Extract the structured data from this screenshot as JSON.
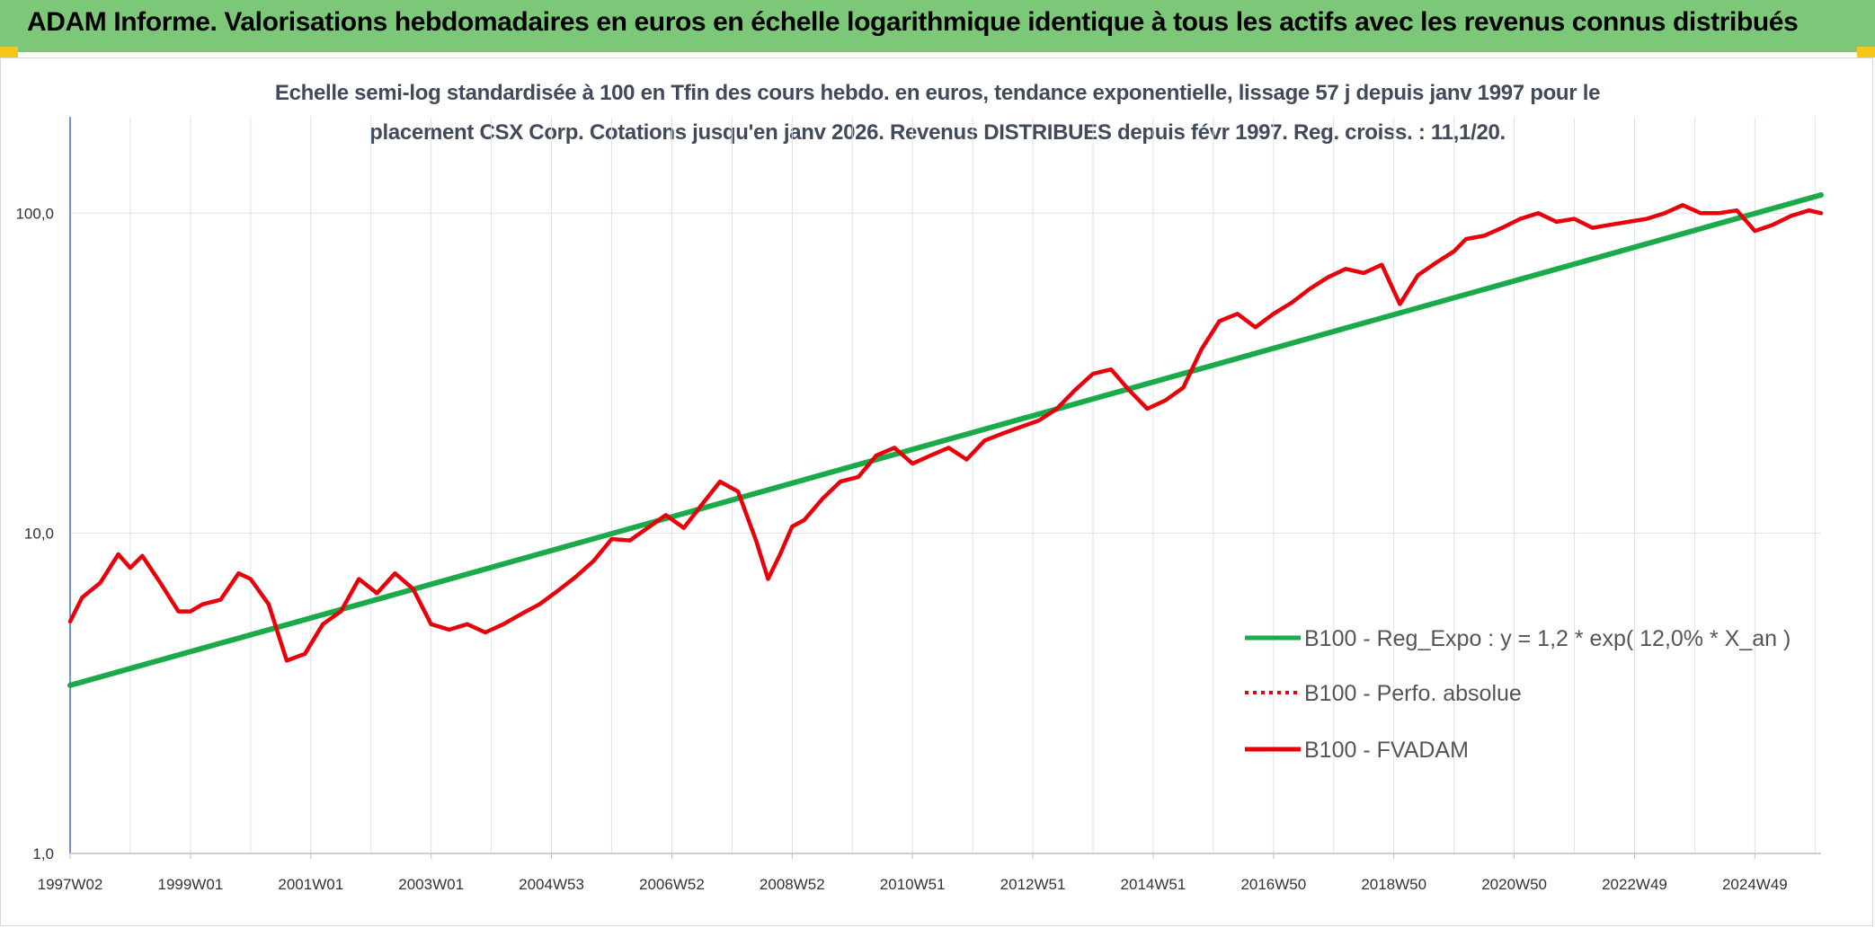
{
  "chart_data": {
    "type": "line",
    "title": "ADAM Informe. Valorisations hebdomadaires en euros en échelle logarithmique identique à tous les actifs avec les revenus connus distribués",
    "subtitle_lines": [
      "Echelle semi-log standardisée à 100 en Tfin des cours hebdo. en euros, tendance exponentielle, lissage 57 j depuis janv 1997 pour le",
      "placement CSX Corp. Cotations jusqu'en janv 2026. Revenus DISTRIBUES depuis févr 1997. Reg. croiss. : 11,1/20."
    ],
    "y_scale": "log",
    "ylim": [
      1,
      200
    ],
    "y_ticks": [
      {
        "value": 1,
        "label": "1,0"
      },
      {
        "value": 10,
        "label": "10,0"
      },
      {
        "value": 100,
        "label": "100,0"
      }
    ],
    "xlim": [
      1997.0,
      2026.1
    ],
    "x_ticks": [
      {
        "value": 1997.0,
        "label": "1997W02"
      },
      {
        "value": 1999.0,
        "label": "1999W01"
      },
      {
        "value": 2001.0,
        "label": "2001W01"
      },
      {
        "value": 2003.0,
        "label": "2003W01"
      },
      {
        "value": 2005.0,
        "label": "2004W53"
      },
      {
        "value": 2007.0,
        "label": "2006W52"
      },
      {
        "value": 2009.0,
        "label": "2008W52"
      },
      {
        "value": 2011.0,
        "label": "2010W51"
      },
      {
        "value": 2013.0,
        "label": "2012W51"
      },
      {
        "value": 2015.0,
        "label": "2014W51"
      },
      {
        "value": 2017.0,
        "label": "2016W50"
      },
      {
        "value": 2019.0,
        "label": "2018W50"
      },
      {
        "value": 2021.0,
        "label": "2020W50"
      },
      {
        "value": 2023.0,
        "label": "2022W49"
      },
      {
        "value": 2025.0,
        "label": "2024W49"
      }
    ],
    "grid": true,
    "legend_position": "right",
    "series": [
      {
        "name": "B100 - Reg_Expo : y = 1,2 * exp( 12,0% *  X_an )",
        "color": "#1aaa4a",
        "style": "solid",
        "x": [
          1997.0,
          2026.1
        ],
        "y": [
          3.35,
          114
        ]
      },
      {
        "name": "B100 - Perfo. absolue",
        "color": "#e8000b",
        "style": "dotted",
        "x": [],
        "y": []
      },
      {
        "name": "B100 - FVADAM",
        "color": "#e8000b",
        "style": "solid",
        "x": [
          1997.0,
          1997.2,
          1997.5,
          1997.8,
          1998.0,
          1998.2,
          1998.5,
          1998.8,
          1999.0,
          1999.2,
          1999.5,
          1999.8,
          2000.0,
          2000.3,
          2000.6,
          2000.9,
          2001.2,
          2001.5,
          2001.8,
          2002.1,
          2002.4,
          2002.7,
          2003.0,
          2003.3,
          2003.6,
          2003.9,
          2004.2,
          2004.5,
          2004.8,
          2005.1,
          2005.4,
          2005.7,
          2006.0,
          2006.3,
          2006.6,
          2006.9,
          2007.2,
          2007.5,
          2007.8,
          2008.1,
          2008.4,
          2008.6,
          2008.8,
          2009.0,
          2009.2,
          2009.5,
          2009.8,
          2010.1,
          2010.4,
          2010.7,
          2011.0,
          2011.3,
          2011.6,
          2011.9,
          2012.2,
          2012.5,
          2012.8,
          2013.1,
          2013.4,
          2013.7,
          2014.0,
          2014.3,
          2014.6,
          2014.9,
          2015.2,
          2015.5,
          2015.8,
          2016.1,
          2016.4,
          2016.7,
          2017.0,
          2017.3,
          2017.6,
          2017.9,
          2018.2,
          2018.5,
          2018.8,
          2019.1,
          2019.4,
          2019.7,
          2020.0,
          2020.2,
          2020.5,
          2020.8,
          2021.1,
          2021.4,
          2021.7,
          2022.0,
          2022.3,
          2022.6,
          2022.9,
          2023.2,
          2023.5,
          2023.8,
          2024.1,
          2024.4,
          2024.7,
          2025.0,
          2025.3,
          2025.6,
          2025.9,
          2026.1
        ],
        "y": [
          5.3,
          6.3,
          7.0,
          8.6,
          7.8,
          8.5,
          7.0,
          5.7,
          5.7,
          6.0,
          6.2,
          7.5,
          7.2,
          6.0,
          4.0,
          4.2,
          5.2,
          5.7,
          7.2,
          6.5,
          7.5,
          6.7,
          5.2,
          5.0,
          5.2,
          4.9,
          5.2,
          5.6,
          6.0,
          6.6,
          7.3,
          8.2,
          9.6,
          9.5,
          10.4,
          11.4,
          10.4,
          12.3,
          14.5,
          13.5,
          9.5,
          7.2,
          8.6,
          10.5,
          11.0,
          12.8,
          14.5,
          15.0,
          17.5,
          18.5,
          16.5,
          17.5,
          18.5,
          17.0,
          19.5,
          20.5,
          21.5,
          22.5,
          24.5,
          28.0,
          31.5,
          32.5,
          28.0,
          24.5,
          26.0,
          28.5,
          37.5,
          46.0,
          48.5,
          44.0,
          48.5,
          52.5,
          58.0,
          63.0,
          67.0,
          65.0,
          69.0,
          52.0,
          64.0,
          70.0,
          76.0,
          83.0,
          85.0,
          90.0,
          96.0,
          100.0,
          94.0,
          96.0,
          90.0,
          92.0,
          94.0,
          96.0,
          100.0,
          106.0,
          100.0,
          100.0,
          102.0,
          88.0,
          92.0,
          98.0,
          102.0,
          100.0
        ]
      }
    ]
  }
}
